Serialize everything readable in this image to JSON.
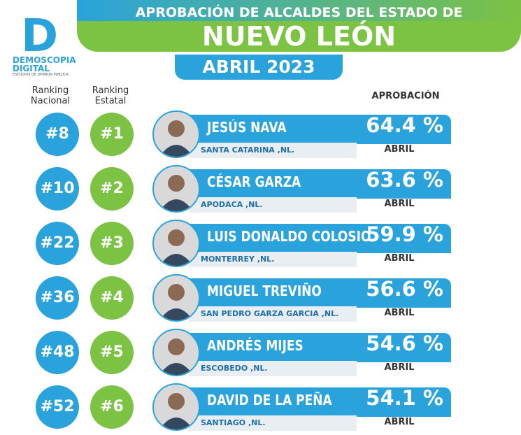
{
  "header": {
    "title_line1": "APROBACIÓN DE ALCALDES DEL ESTADO DE",
    "title_line2": "NUEVO LEÓN",
    "subtitle": "ABRIL 2023"
  },
  "logo": {
    "line1": "DEMOSCOPIA",
    "line2": "DIGITAL",
    "tagline": "ESTUDIOS DE OPINION PUBLICA"
  },
  "columns": {
    "national": "Ranking Nacional",
    "state": "Ranking Estatal",
    "approval": "APROBACIÓN"
  },
  "rows": [
    {
      "national": "#8",
      "state": "#1",
      "name": "JESÚS NAVA",
      "city": "SANTA CATARINA ,NL.",
      "approval": "64.4 %",
      "month": "ABRIL"
    },
    {
      "national": "#10",
      "state": "#2",
      "name": "CÉSAR GARZA",
      "city": "APODACA ,NL.",
      "approval": "63.6 %",
      "month": "ABRIL"
    },
    {
      "national": "#22",
      "state": "#3",
      "name": "LUIS DONALDO COLOSIO",
      "city": "MONTERREY ,NL.",
      "approval": "59.9 %",
      "month": "ABRIL"
    },
    {
      "national": "#36",
      "state": "#4",
      "name": "MIGUEL TREVIÑO",
      "city": "SAN PEDRO GARZA GARCIA ,NL.",
      "approval": "56.6 %",
      "month": "ABRIL"
    },
    {
      "national": "#48",
      "state": "#5",
      "name": "ANDRÉS MIJES",
      "city": "ESCOBEDO ,NL.",
      "approval": "54.6 %",
      "month": "ABRIL"
    },
    {
      "national": "#52",
      "state": "#6",
      "name": "DAVID DE LA PEÑA",
      "city": "SANTIAGO ,NL.",
      "approval": "54.1 %",
      "month": "ABRIL"
    }
  ]
}
